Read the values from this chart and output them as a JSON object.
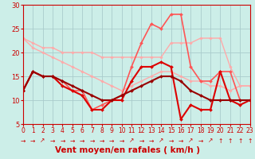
{
  "xlabel": "Vent moyen/en rafales ( km/h )",
  "background_color": "#cceee8",
  "grid_color": "#aacccc",
  "xmin": 0,
  "xmax": 23,
  "ymin": 5,
  "ymax": 30,
  "yticks": [
    5,
    10,
    15,
    20,
    25,
    30
  ],
  "series": [
    {
      "x": [
        0,
        1,
        2,
        3,
        4,
        5,
        6,
        7,
        8,
        9,
        10,
        11,
        12,
        13,
        14,
        15,
        16,
        17,
        18,
        19,
        20,
        21,
        22,
        23
      ],
      "y": [
        23,
        22,
        21,
        21,
        20,
        20,
        20,
        20,
        19,
        19,
        19,
        19,
        19,
        19,
        19,
        22,
        22,
        22,
        23,
        23,
        23,
        17,
        13,
        13
      ],
      "color": "#ffaaaa",
      "lw": 1.0,
      "marker": "D",
      "ms": 1.8
    },
    {
      "x": [
        0,
        1,
        2,
        3,
        4,
        5,
        6,
        7,
        8,
        9,
        10,
        11,
        12,
        13,
        14,
        15,
        16,
        17,
        18,
        19,
        20,
        21,
        22,
        23
      ],
      "y": [
        23,
        21,
        20,
        19,
        18,
        17,
        16,
        15,
        14,
        13,
        12,
        13,
        14,
        15,
        16,
        16,
        15,
        14,
        14,
        13,
        13,
        12,
        13,
        13
      ],
      "color": "#ffaaaa",
      "lw": 1.0,
      "marker": "D",
      "ms": 1.8
    },
    {
      "x": [
        0,
        1,
        2,
        3,
        4,
        5,
        6,
        7,
        8,
        9,
        10,
        11,
        12,
        13,
        14,
        15,
        16,
        17,
        18,
        19,
        20,
        21,
        22,
        23
      ],
      "y": [
        12,
        16,
        15,
        15,
        14,
        12,
        12,
        8,
        9,
        10,
        11,
        17,
        22,
        26,
        25,
        28,
        28,
        17,
        14,
        14,
        16,
        16,
        10,
        10
      ],
      "color": "#ff5555",
      "lw": 1.2,
      "marker": "D",
      "ms": 2.0
    },
    {
      "x": [
        0,
        1,
        2,
        3,
        4,
        5,
        6,
        7,
        8,
        9,
        10,
        11,
        12,
        13,
        14,
        15,
        16,
        17,
        18,
        19,
        20,
        21,
        22,
        23
      ],
      "y": [
        12,
        16,
        15,
        15,
        13,
        12,
        11,
        8,
        8,
        10,
        10,
        14,
        17,
        17,
        18,
        17,
        6,
        9,
        8,
        8,
        16,
        10,
        9,
        10
      ],
      "color": "#dd0000",
      "lw": 1.5,
      "marker": "D",
      "ms": 2.0
    },
    {
      "x": [
        0,
        1,
        2,
        3,
        4,
        5,
        6,
        7,
        8,
        9,
        10,
        11,
        12,
        13,
        14,
        15,
        16,
        17,
        18,
        19,
        20,
        21,
        22,
        23
      ],
      "y": [
        12,
        16,
        15,
        15,
        14,
        13,
        12,
        11,
        10,
        10,
        11,
        12,
        13,
        14,
        15,
        15,
        14,
        12,
        11,
        10,
        10,
        10,
        10,
        10
      ],
      "color": "#990000",
      "lw": 1.5,
      "marker": "D",
      "ms": 2.0
    }
  ],
  "arrows": [
    "→",
    "→",
    "↗",
    "→",
    "→",
    "→",
    "→",
    "→",
    "→",
    "→",
    "→",
    "↗",
    "→",
    "→",
    "↗",
    "→",
    "→",
    "↗",
    "→",
    "↗",
    "↑",
    "↑",
    "↑",
    "↑"
  ],
  "tick_fontsize": 6,
  "label_fontsize": 7.5
}
